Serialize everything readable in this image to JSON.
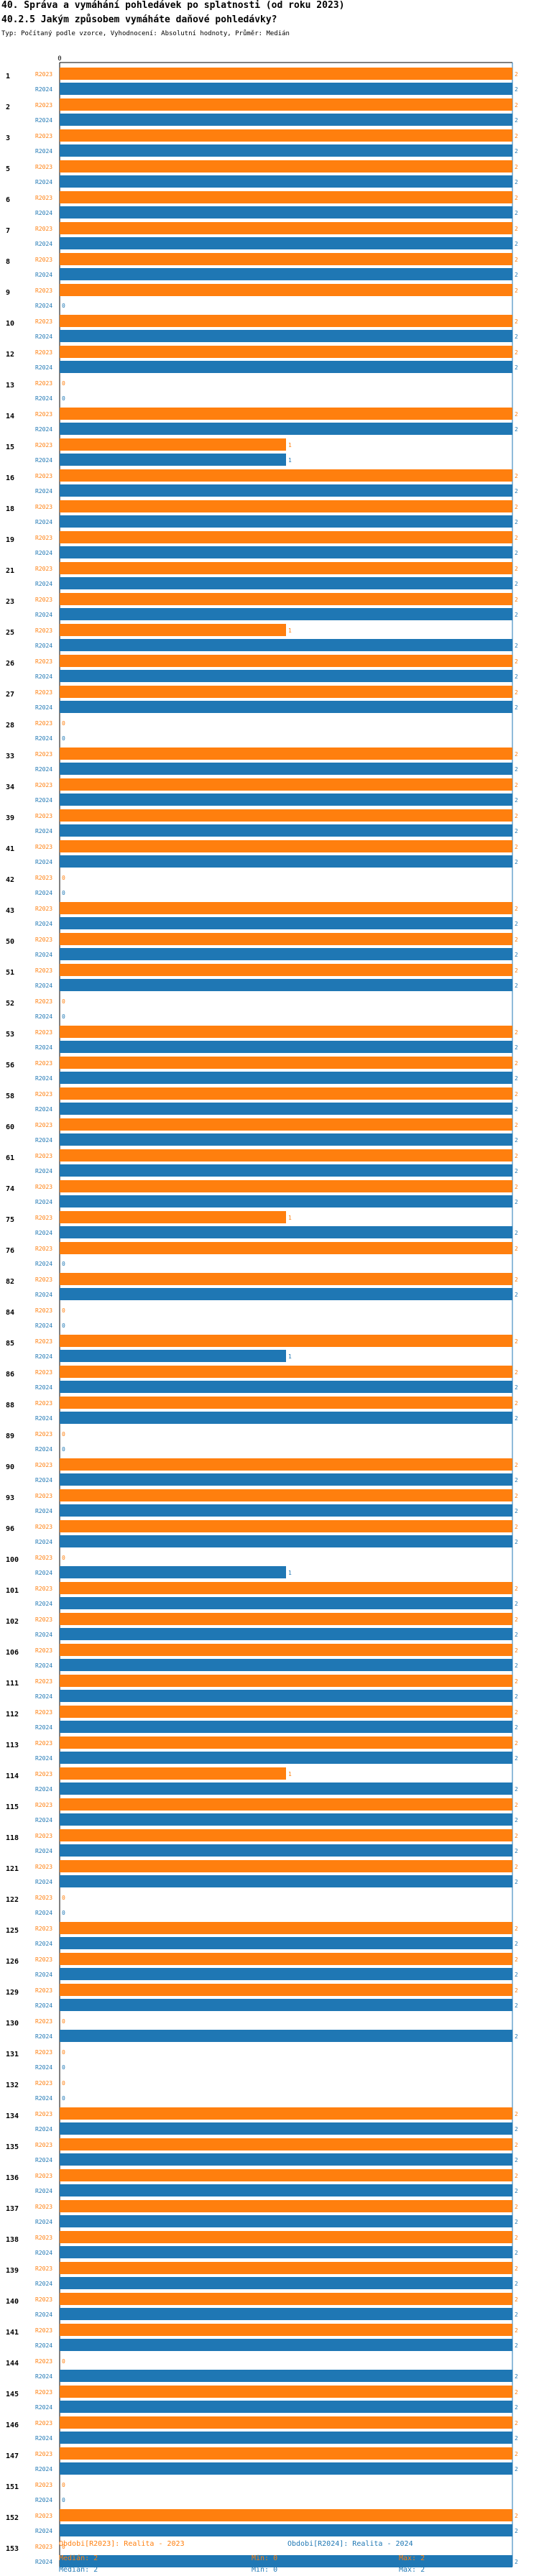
{
  "header": {
    "title1": "40. Správa a vymáhání pohledávek po splatnosti (od roku 2023)",
    "title2": "40.2.5 Jakým způsobem vymáháte daňové pohledávky?",
    "subtitle": "Typ: Počítaný podle vzorce, Vyhodnocení: Absolutní hodnoty, Průměr: Medián"
  },
  "colors": {
    "r2023": "#ff7f0e",
    "r2024": "#1f77b4"
  },
  "chart_data": {
    "type": "bar",
    "orientation": "horizontal",
    "xlim": [
      0,
      2
    ],
    "x_tick_label": "0",
    "series_labels": [
      "R2023",
      "R2024"
    ],
    "categories": [
      "1",
      "2",
      "3",
      "5",
      "6",
      "7",
      "8",
      "9",
      "10",
      "12",
      "13",
      "14",
      "15",
      "16",
      "18",
      "19",
      "21",
      "23",
      "25",
      "26",
      "27",
      "28",
      "33",
      "34",
      "39",
      "41",
      "42",
      "43",
      "50",
      "51",
      "52",
      "53",
      "56",
      "58",
      "60",
      "61",
      "74",
      "75",
      "76",
      "82",
      "84",
      "85",
      "86",
      "88",
      "89",
      "90",
      "93",
      "96",
      "100",
      "101",
      "102",
      "106",
      "111",
      "112",
      "113",
      "114",
      "115",
      "118",
      "121",
      "122",
      "125",
      "126",
      "129",
      "130",
      "131",
      "132",
      "134",
      "135",
      "136",
      "137",
      "138",
      "139",
      "140",
      "141",
      "144",
      "145",
      "146",
      "147",
      "151",
      "152",
      "153"
    ],
    "series": [
      {
        "name": "R2023",
        "values": [
          2,
          2,
          2,
          2,
          2,
          2,
          2,
          2,
          2,
          2,
          0,
          2,
          1,
          2,
          2,
          2,
          2,
          2,
          1,
          2,
          2,
          0,
          2,
          2,
          2,
          2,
          0,
          2,
          2,
          2,
          0,
          2,
          2,
          2,
          2,
          2,
          2,
          1,
          2,
          2,
          0,
          2,
          2,
          2,
          0,
          2,
          2,
          2,
          0,
          2,
          2,
          2,
          2,
          2,
          2,
          1,
          2,
          2,
          2,
          0,
          2,
          2,
          2,
          0,
          0,
          0,
          2,
          2,
          2,
          2,
          2,
          2,
          2,
          2,
          0,
          2,
          2,
          2,
          0,
          2,
          0
        ]
      },
      {
        "name": "R2024",
        "values": [
          2,
          2,
          2,
          2,
          2,
          2,
          2,
          0,
          2,
          2,
          0,
          2,
          1,
          2,
          2,
          2,
          2,
          2,
          2,
          2,
          2,
          0,
          2,
          2,
          2,
          2,
          0,
          2,
          2,
          2,
          0,
          2,
          2,
          2,
          2,
          2,
          2,
          2,
          0,
          2,
          0,
          1,
          2,
          2,
          0,
          2,
          2,
          2,
          1,
          2,
          2,
          2,
          2,
          2,
          2,
          2,
          2,
          2,
          2,
          0,
          2,
          2,
          2,
          2,
          0,
          0,
          2,
          2,
          2,
          2,
          2,
          2,
          2,
          2,
          2,
          2,
          2,
          2,
          0,
          2,
          2
        ]
      }
    ]
  },
  "legend": {
    "r2023_label": "Obdobi[R2023]: Realita - 2023",
    "r2024_label": "Obdobi[R2024]: Realita - 2024",
    "r2023_median": "Medián: 2",
    "r2023_min": "Min: 0",
    "r2023_max": "Max: 2",
    "r2024_median": "Medián: 2",
    "r2024_min": "Min: 0",
    "r2024_max": "Max: 2"
  }
}
